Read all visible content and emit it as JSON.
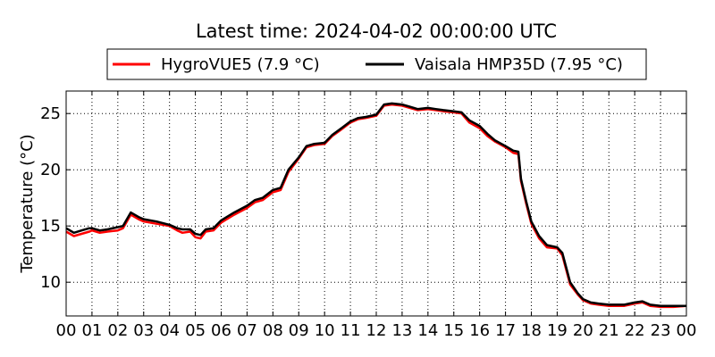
{
  "chart_data": {
    "type": "line",
    "title": "Latest time: 2024-04-02 00:00:00 UTC",
    "xlabel": "",
    "ylabel": "Temperature (°C)",
    "x_unit": "hour",
    "xlim": [
      0,
      24
    ],
    "ylim": [
      7,
      27
    ],
    "x_ticks": [
      "00",
      "01",
      "02",
      "03",
      "04",
      "05",
      "06",
      "07",
      "08",
      "09",
      "10",
      "11",
      "12",
      "13",
      "14",
      "15",
      "16",
      "17",
      "18",
      "19",
      "20",
      "21",
      "22",
      "23",
      "00"
    ],
    "y_ticks": [
      10,
      15,
      20,
      25
    ],
    "grid": true,
    "legend_position": "top",
    "series": [
      {
        "name": "HygroVUE5 (7.9 °C)",
        "color": "#ff0000",
        "x": [
          0,
          0.3,
          0.6,
          0.9,
          1.0,
          1.3,
          1.6,
          2.0,
          2.2,
          2.5,
          2.8,
          3.0,
          3.5,
          4.0,
          4.3,
          4.5,
          4.8,
          5.0,
          5.2,
          5.4,
          5.7,
          6.0,
          6.5,
          7.0,
          7.3,
          7.6,
          8.0,
          8.3,
          8.6,
          9.0,
          9.3,
          9.6,
          10.0,
          10.3,
          10.6,
          11.0,
          11.3,
          11.6,
          12.0,
          12.3,
          12.6,
          13.0,
          13.3,
          13.6,
          14.0,
          14.3,
          14.6,
          15.0,
          15.3,
          15.6,
          16.0,
          16.3,
          16.6,
          17.0,
          17.3,
          17.5,
          17.6,
          17.8,
          18.0,
          18.3,
          18.6,
          19.0,
          19.2,
          19.5,
          19.8,
          20.0,
          20.3,
          20.6,
          21.0,
          21.3,
          21.6,
          22.0,
          22.3,
          22.6,
          23.0,
          23.5,
          24.0
        ],
        "y": [
          14.5,
          14.1,
          14.3,
          14.5,
          14.6,
          14.4,
          14.5,
          14.6,
          14.8,
          16.0,
          15.6,
          15.4,
          15.2,
          15.0,
          14.6,
          14.4,
          14.5,
          14.0,
          13.9,
          14.5,
          14.6,
          15.3,
          16.0,
          16.6,
          17.1,
          17.3,
          18.0,
          18.2,
          19.8,
          21.0,
          22.0,
          22.2,
          22.3,
          23.0,
          23.5,
          24.2,
          24.5,
          24.6,
          24.8,
          25.7,
          25.8,
          25.7,
          25.5,
          25.3,
          25.4,
          25.3,
          25.2,
          25.1,
          25.0,
          24.2,
          23.7,
          23.0,
          22.5,
          22.0,
          21.5,
          21.4,
          19.0,
          17.0,
          15.2,
          13.9,
          13.1,
          13.0,
          12.4,
          9.8,
          8.9,
          8.4,
          8.1,
          8.0,
          7.9,
          7.9,
          7.9,
          8.1,
          8.2,
          7.9,
          7.8,
          7.8,
          7.9
        ]
      },
      {
        "name": "Vaisala HMP35D (7.95 °C)",
        "color": "#000000",
        "x": [
          0,
          0.3,
          0.6,
          0.9,
          1.0,
          1.3,
          1.6,
          2.0,
          2.2,
          2.5,
          2.8,
          3.0,
          3.5,
          4.0,
          4.3,
          4.5,
          4.8,
          5.0,
          5.2,
          5.4,
          5.7,
          6.0,
          6.5,
          7.0,
          7.3,
          7.6,
          8.0,
          8.3,
          8.6,
          9.0,
          9.3,
          9.6,
          10.0,
          10.3,
          10.6,
          11.0,
          11.3,
          11.6,
          12.0,
          12.3,
          12.6,
          13.0,
          13.3,
          13.6,
          14.0,
          14.3,
          14.6,
          15.0,
          15.3,
          15.6,
          16.0,
          16.3,
          16.6,
          17.0,
          17.3,
          17.5,
          17.6,
          17.8,
          18.0,
          18.3,
          18.6,
          19.0,
          19.2,
          19.5,
          19.8,
          20.0,
          20.3,
          20.6,
          21.0,
          21.3,
          21.6,
          22.0,
          22.3,
          22.6,
          23.0,
          23.5,
          24.0
        ],
        "y": [
          14.8,
          14.4,
          14.6,
          14.8,
          14.8,
          14.6,
          14.7,
          14.9,
          15.0,
          16.2,
          15.8,
          15.6,
          15.4,
          15.1,
          14.8,
          14.7,
          14.7,
          14.3,
          14.2,
          14.7,
          14.8,
          15.5,
          16.2,
          16.8,
          17.3,
          17.5,
          18.2,
          18.4,
          20.0,
          21.1,
          22.1,
          22.3,
          22.4,
          23.1,
          23.6,
          24.3,
          24.6,
          24.7,
          24.9,
          25.8,
          25.9,
          25.8,
          25.6,
          25.4,
          25.5,
          25.4,
          25.3,
          25.2,
          25.1,
          24.4,
          23.9,
          23.2,
          22.6,
          22.1,
          21.7,
          21.6,
          19.2,
          17.2,
          15.4,
          14.1,
          13.3,
          13.1,
          12.6,
          10.0,
          9.0,
          8.5,
          8.2,
          8.1,
          8.0,
          8.0,
          8.0,
          8.2,
          8.3,
          8.0,
          7.9,
          7.9,
          7.9
        ]
      }
    ]
  }
}
